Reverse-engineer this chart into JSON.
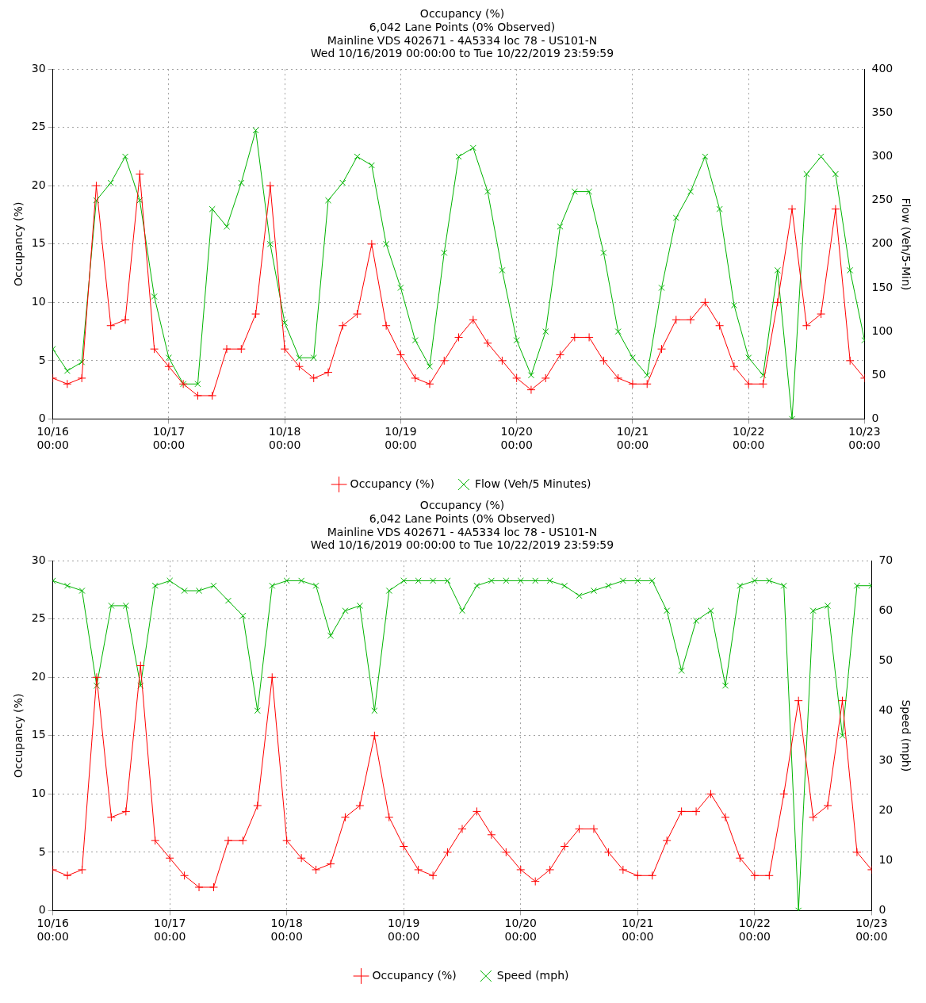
{
  "chart_data": [
    {
      "type": "line",
      "title": "Occupancy (%)",
      "subtitle": "6,042 Lane Points (0% Observed)\nMainline VDS 402671 - 4A5334 loc 78 - US101-N\nWed 10/16/2019 00:00:00 to Tue 10/22/2019 23:59:59",
      "ylabel": "Occupancy (%)",
      "y2label": "Flow (Veh/5-Min)",
      "x": [
        "2019-10-16T00:00",
        "2019-10-16T03:00",
        "2019-10-16T06:00",
        "2019-10-16T09:00",
        "2019-10-16T12:00",
        "2019-10-16T15:00",
        "2019-10-16T18:00",
        "2019-10-16T21:00",
        "2019-10-17T00:00",
        "2019-10-17T03:00",
        "2019-10-17T06:00",
        "2019-10-17T09:00",
        "2019-10-17T12:00",
        "2019-10-17T15:00",
        "2019-10-17T18:00",
        "2019-10-17T21:00",
        "2019-10-18T00:00",
        "2019-10-18T03:00",
        "2019-10-18T06:00",
        "2019-10-18T09:00",
        "2019-10-18T12:00",
        "2019-10-18T15:00",
        "2019-10-18T18:00",
        "2019-10-18T21:00",
        "2019-10-19T00:00",
        "2019-10-19T03:00",
        "2019-10-19T06:00",
        "2019-10-19T09:00",
        "2019-10-19T12:00",
        "2019-10-19T15:00",
        "2019-10-19T18:00",
        "2019-10-19T21:00",
        "2019-10-20T00:00",
        "2019-10-20T03:00",
        "2019-10-20T06:00",
        "2019-10-20T09:00",
        "2019-10-20T12:00",
        "2019-10-20T15:00",
        "2019-10-20T18:00",
        "2019-10-20T21:00",
        "2019-10-21T00:00",
        "2019-10-21T03:00",
        "2019-10-21T06:00",
        "2019-10-21T09:00",
        "2019-10-21T12:00",
        "2019-10-21T15:00",
        "2019-10-21T18:00",
        "2019-10-21T21:00",
        "2019-10-22T00:00",
        "2019-10-22T03:00",
        "2019-10-22T06:00",
        "2019-10-22T09:00",
        "2019-10-22T12:00",
        "2019-10-22T15:00",
        "2019-10-22T18:00",
        "2019-10-22T21:00",
        "2019-10-23T00:00"
      ],
      "series": [
        {
          "name": "Occupancy (%)",
          "color": "#ff0000",
          "values": [
            3.5,
            3,
            3.5,
            20,
            8,
            8.5,
            21,
            6,
            4.5,
            3,
            2,
            2,
            6,
            6,
            9,
            20,
            6,
            4.5,
            3.5,
            4,
            8,
            9,
            15,
            8,
            5.5,
            3.5,
            3,
            5,
            7,
            8.5,
            6.5,
            5,
            3.5,
            2.5,
            3.5,
            5.5,
            7,
            7,
            5,
            3.5,
            3,
            3,
            6,
            8.5,
            8.5,
            10,
            8,
            4.5,
            3,
            3,
            10,
            18,
            8,
            9,
            18,
            5,
            3.5
          ]
        },
        {
          "name": "Flow (Veh/5 Minutes)",
          "color": "#00b400",
          "axis": "y2",
          "values": [
            80,
            55,
            65,
            250,
            270,
            300,
            250,
            140,
            70,
            40,
            40,
            240,
            220,
            270,
            330,
            200,
            110,
            70,
            70,
            250,
            270,
            300,
            290,
            200,
            150,
            90,
            60,
            190,
            300,
            310,
            260,
            170,
            90,
            50,
            100,
            220,
            260,
            260,
            190,
            100,
            70,
            50,
            150,
            230,
            260,
            300,
            240,
            130,
            70,
            50,
            170,
            0,
            280,
            300,
            280,
            170,
            90
          ]
        }
      ],
      "xlim": [
        "2019-10-16T00:00",
        "2019-10-23T00:00"
      ],
      "xticks": [
        {
          "value": "2019-10-16T00:00",
          "label": "10/16 00:00"
        },
        {
          "value": "2019-10-17T00:00",
          "label": "10/17 00:00"
        },
        {
          "value": "2019-10-18T00:00",
          "label": "10/18 00:00"
        },
        {
          "value": "2019-10-19T00:00",
          "label": "10/19 00:00"
        },
        {
          "value": "2019-10-20T00:00",
          "label": "10/20 00:00"
        },
        {
          "value": "2019-10-21T00:00",
          "label": "10/21 00:00"
        },
        {
          "value": "2019-10-22T00:00",
          "label": "10/22 00:00"
        },
        {
          "value": "2019-10-23T00:00",
          "label": "10/23 00:00"
        }
      ],
      "ylim": [
        0,
        30
      ],
      "yticks": [
        0,
        5,
        10,
        15,
        20,
        25,
        30
      ],
      "y2lim": [
        0,
        400
      ],
      "y2ticks": [
        0,
        50,
        100,
        150,
        200,
        250,
        300,
        350,
        400
      ],
      "grid": true,
      "legend": "bottom",
      "marker": "cross"
    },
    {
      "type": "line",
      "title": "Occupancy (%)",
      "subtitle": "6,042 Lane Points (0% Observed)\nMainline VDS 402671 - 4A5334 loc 78 - US101-N\nWed 10/16/2019 00:00:00 to Tue 10/22/2019 23:59:59",
      "ylabel": "Occupancy (%)",
      "y2label": "Speed (mph)",
      "x": [
        "2019-10-16T00:00",
        "2019-10-16T03:00",
        "2019-10-16T06:00",
        "2019-10-16T09:00",
        "2019-10-16T12:00",
        "2019-10-16T15:00",
        "2019-10-16T18:00",
        "2019-10-16T21:00",
        "2019-10-17T00:00",
        "2019-10-17T03:00",
        "2019-10-17T06:00",
        "2019-10-17T09:00",
        "2019-10-17T12:00",
        "2019-10-17T15:00",
        "2019-10-17T18:00",
        "2019-10-17T21:00",
        "2019-10-18T00:00",
        "2019-10-18T03:00",
        "2019-10-18T06:00",
        "2019-10-18T09:00",
        "2019-10-18T12:00",
        "2019-10-18T15:00",
        "2019-10-18T18:00",
        "2019-10-18T21:00",
        "2019-10-19T00:00",
        "2019-10-19T03:00",
        "2019-10-19T06:00",
        "2019-10-19T09:00",
        "2019-10-19T12:00",
        "2019-10-19T15:00",
        "2019-10-19T18:00",
        "2019-10-19T21:00",
        "2019-10-20T00:00",
        "2019-10-20T03:00",
        "2019-10-20T06:00",
        "2019-10-20T09:00",
        "2019-10-20T12:00",
        "2019-10-20T15:00",
        "2019-10-20T18:00",
        "2019-10-20T21:00",
        "2019-10-21T00:00",
        "2019-10-21T03:00",
        "2019-10-21T06:00",
        "2019-10-21T09:00",
        "2019-10-21T12:00",
        "2019-10-21T15:00",
        "2019-10-21T18:00",
        "2019-10-21T21:00",
        "2019-10-22T00:00",
        "2019-10-22T03:00",
        "2019-10-22T06:00",
        "2019-10-22T09:00",
        "2019-10-22T12:00",
        "2019-10-22T15:00",
        "2019-10-22T18:00",
        "2019-10-22T21:00",
        "2019-10-23T00:00"
      ],
      "series": [
        {
          "name": "Occupancy (%)",
          "color": "#ff0000",
          "values": [
            3.5,
            3,
            3.5,
            20,
            8,
            8.5,
            21,
            6,
            4.5,
            3,
            2,
            2,
            6,
            6,
            9,
            20,
            6,
            4.5,
            3.5,
            4,
            8,
            9,
            15,
            8,
            5.5,
            3.5,
            3,
            5,
            7,
            8.5,
            6.5,
            5,
            3.5,
            2.5,
            3.5,
            5.5,
            7,
            7,
            5,
            3.5,
            3,
            3,
            6,
            8.5,
            8.5,
            10,
            8,
            4.5,
            3,
            3,
            10,
            18,
            8,
            9,
            18,
            5,
            3.5
          ]
        },
        {
          "name": "Speed (mph)",
          "color": "#00b400",
          "axis": "y2",
          "values": [
            66,
            65,
            64,
            45,
            61,
            61,
            45,
            65,
            66,
            64,
            64,
            65,
            62,
            59,
            40,
            65,
            66,
            66,
            65,
            55,
            60,
            61,
            40,
            64,
            66,
            66,
            66,
            66,
            60,
            65,
            66,
            66,
            66,
            66,
            66,
            65,
            63,
            64,
            65,
            66,
            66,
            66,
            60,
            48,
            58,
            60,
            45,
            65,
            66,
            66,
            65,
            0,
            60,
            61,
            35,
            65,
            65
          ]
        }
      ],
      "xlim": [
        "2019-10-16T00:00",
        "2019-10-23T00:00"
      ],
      "xticks": [
        {
          "value": "2019-10-16T00:00",
          "label": "10/16 00:00"
        },
        {
          "value": "2019-10-17T00:00",
          "label": "10/17 00:00"
        },
        {
          "value": "2019-10-18T00:00",
          "label": "10/18 00:00"
        },
        {
          "value": "2019-10-19T00:00",
          "label": "10/19 00:00"
        },
        {
          "value": "2019-10-20T00:00",
          "label": "10/20 00:00"
        },
        {
          "value": "2019-10-21T00:00",
          "label": "10/21 00:00"
        },
        {
          "value": "2019-10-22T00:00",
          "label": "10/22 00:00"
        },
        {
          "value": "2019-10-23T00:00",
          "label": "10/23 00:00"
        }
      ],
      "ylim": [
        0,
        30
      ],
      "yticks": [
        0,
        5,
        10,
        15,
        20,
        25,
        30
      ],
      "y2lim": [
        0,
        70
      ],
      "y2ticks": [
        0,
        10,
        20,
        30,
        40,
        50,
        60,
        70
      ],
      "grid": true,
      "legend": "bottom",
      "marker": "cross"
    }
  ]
}
